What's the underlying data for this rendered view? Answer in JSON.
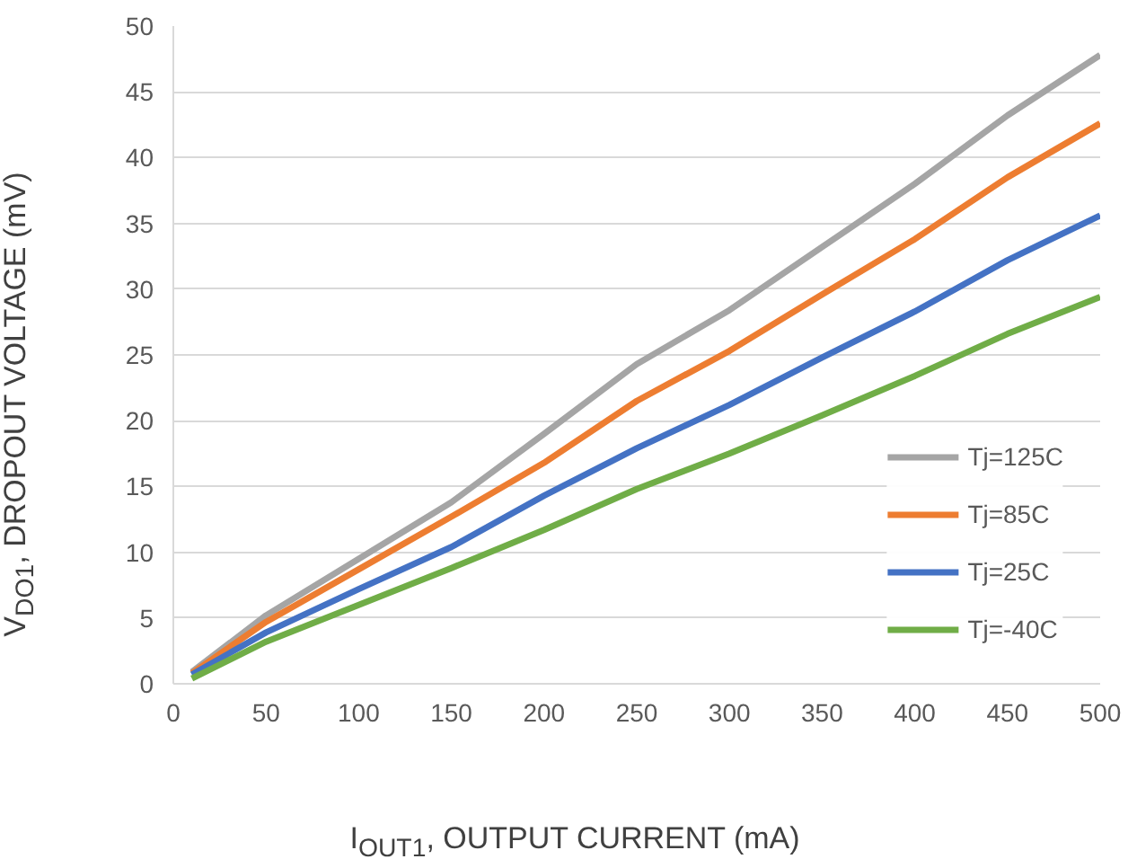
{
  "chart_data": {
    "type": "line",
    "xlabel": "I$_{OUT1}$, OUTPUT CURRENT (mA)",
    "ylabel": "V$_{DO1}$, DROPOUT VOLTAGE (mV)",
    "x": [
      10,
      50,
      100,
      150,
      200,
      250,
      300,
      350,
      400,
      450,
      500
    ],
    "series": [
      {
        "name": "Tj=125C",
        "color": "#a5a5a5",
        "values": [
          0.9,
          5.2,
          9.5,
          13.8,
          19,
          24.3,
          28.4,
          33.2,
          38,
          43.2,
          47.8
        ]
      },
      {
        "name": "Tj=85C",
        "color": "#ed7d31",
        "values": [
          0.8,
          4.7,
          8.7,
          12.7,
          16.8,
          21.5,
          25.3,
          29.6,
          33.8,
          38.5,
          42.6
        ]
      },
      {
        "name": "Tj=25C",
        "color": "#4472c4",
        "values": [
          0.7,
          3.9,
          7.2,
          10.4,
          14.3,
          17.9,
          21.2,
          24.8,
          28.3,
          32.2,
          35.6
        ]
      },
      {
        "name": "Tj=-40C",
        "color": "#70ad47",
        "values": [
          0.4,
          3.2,
          6.0,
          8.8,
          11.7,
          14.8,
          17.5,
          20.4,
          23.4,
          26.6,
          29.4
        ]
      }
    ],
    "xlim": [
      0,
      500
    ],
    "ylim": [
      0,
      50
    ],
    "xticks": [
      0,
      50,
      100,
      150,
      200,
      250,
      300,
      350,
      400,
      450,
      500
    ],
    "yticks": [
      0,
      5,
      10,
      15,
      20,
      25,
      30,
      35,
      40,
      45,
      50
    ],
    "grid": "y",
    "legend": "bottom right",
    "marker": "none",
    "line_style": "solid"
  }
}
